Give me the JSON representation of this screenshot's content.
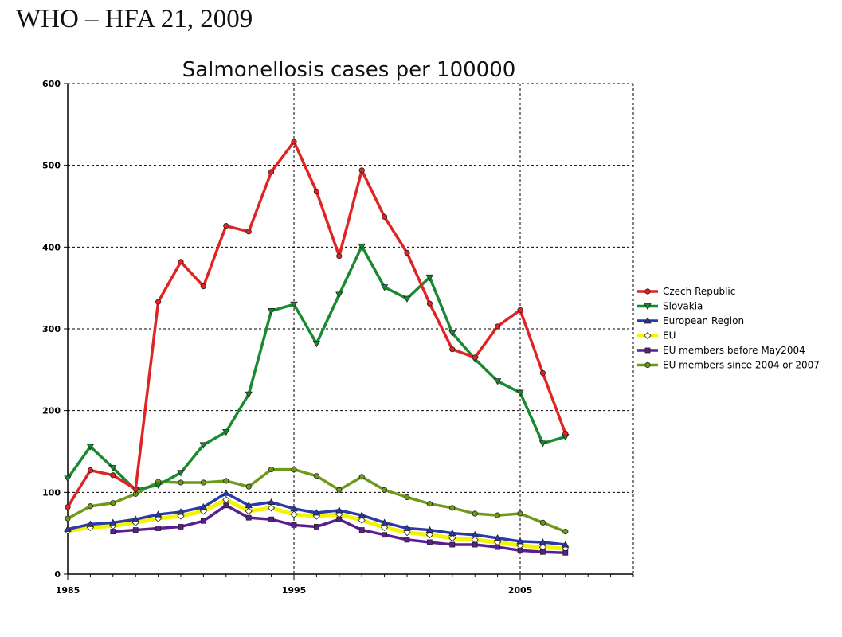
{
  "header": {
    "title": "WHO – HFA 21, 2009"
  },
  "colors": {
    "Czech Republic": "#e02424",
    "Slovakia": "#1a8a30",
    "European Region": "#2c3aa8",
    "EU": "#f4f400",
    "EU members before May2004": "#5a1f8e",
    "EU members since 2004 or 2007": "#6e9a1c"
  },
  "chart_data": {
    "type": "line",
    "title": "Salmonellosis cases per 100000",
    "xlabel": "",
    "ylabel": "",
    "xlim": [
      1985,
      2010
    ],
    "ylim": [
      0,
      600
    ],
    "x_ticks": [
      1985,
      1995,
      2005
    ],
    "y_ticks": [
      0,
      100,
      200,
      300,
      400,
      500,
      600
    ],
    "grid": true,
    "legend_position": "right",
    "series": [
      {
        "name": "Czech Republic",
        "marker": "circle",
        "x": [
          1985,
          1986,
          1987,
          1988,
          1989,
          1990,
          1991,
          1992,
          1993,
          1994,
          1995,
          1996,
          1997,
          1998,
          1999,
          2000,
          2001,
          2002,
          2003,
          2004,
          2005,
          2006,
          2007
        ],
        "values": [
          82,
          127,
          121,
          104,
          333,
          382,
          352,
          426,
          419,
          492,
          529,
          468,
          389,
          494,
          437,
          393,
          331,
          275,
          265,
          303,
          323,
          246,
          172
        ]
      },
      {
        "name": "Slovakia",
        "marker": "triangle-down",
        "x": [
          1985,
          1986,
          1987,
          1988,
          1989,
          1990,
          1991,
          1992,
          1993,
          1994,
          1995,
          1996,
          1997,
          1998,
          1999,
          2000,
          2001,
          2002,
          2003,
          2004,
          2005,
          2006,
          2007
        ],
        "values": [
          117,
          156,
          130,
          103,
          109,
          124,
          158,
          174,
          220,
          322,
          330,
          282,
          342,
          401,
          351,
          337,
          363,
          295,
          263,
          236,
          222,
          160,
          168
        ]
      },
      {
        "name": "European Region",
        "marker": "triangle-up",
        "x": [
          1985,
          1986,
          1987,
          1988,
          1989,
          1990,
          1991,
          1992,
          1993,
          1994,
          1995,
          1996,
          1997,
          1998,
          1999,
          2000,
          2001,
          2002,
          2003,
          2004,
          2005,
          2006,
          2007
        ],
        "values": [
          55,
          61,
          63,
          67,
          73,
          76,
          82,
          99,
          84,
          88,
          80,
          75,
          78,
          72,
          63,
          56,
          54,
          50,
          48,
          44,
          40,
          39,
          36
        ]
      },
      {
        "name": "EU",
        "marker": "diamond",
        "x": [
          1985,
          1986,
          1987,
          1988,
          1989,
          1990,
          1991,
          1992,
          1993,
          1994,
          1995,
          1996,
          1997,
          1998,
          1999,
          2000,
          2001,
          2002,
          2003,
          2004,
          2005,
          2006,
          2007
        ],
        "values": [
          53,
          57,
          59,
          63,
          68,
          71,
          77,
          91,
          77,
          81,
          73,
          71,
          73,
          66,
          57,
          51,
          48,
          44,
          42,
          39,
          35,
          33,
          31
        ]
      },
      {
        "name": "EU members before May2004",
        "marker": "square",
        "x": [
          1987,
          1988,
          1989,
          1990,
          1991,
          1992,
          1993,
          1994,
          1995,
          1996,
          1997,
          1998,
          1999,
          2000,
          2001,
          2002,
          2003,
          2004,
          2005,
          2006,
          2007
        ],
        "values": [
          52,
          54,
          56,
          58,
          65,
          84,
          69,
          67,
          60,
          58,
          67,
          54,
          48,
          42,
          39,
          36,
          36,
          33,
          29,
          27,
          26
        ]
      },
      {
        "name": "EU members since 2004 or 2007",
        "marker": "circle",
        "x": [
          1985,
          1986,
          1987,
          1988,
          1989,
          1990,
          1991,
          1992,
          1993,
          1994,
          1995,
          1996,
          1997,
          1998,
          1999,
          2000,
          2001,
          2002,
          2003,
          2004,
          2005,
          2006,
          2007
        ],
        "values": [
          68,
          83,
          87,
          98,
          113,
          112,
          112,
          114,
          107,
          128,
          128,
          120,
          103,
          119,
          103,
          94,
          86,
          81,
          74,
          72,
          74,
          63,
          52
        ]
      }
    ]
  }
}
